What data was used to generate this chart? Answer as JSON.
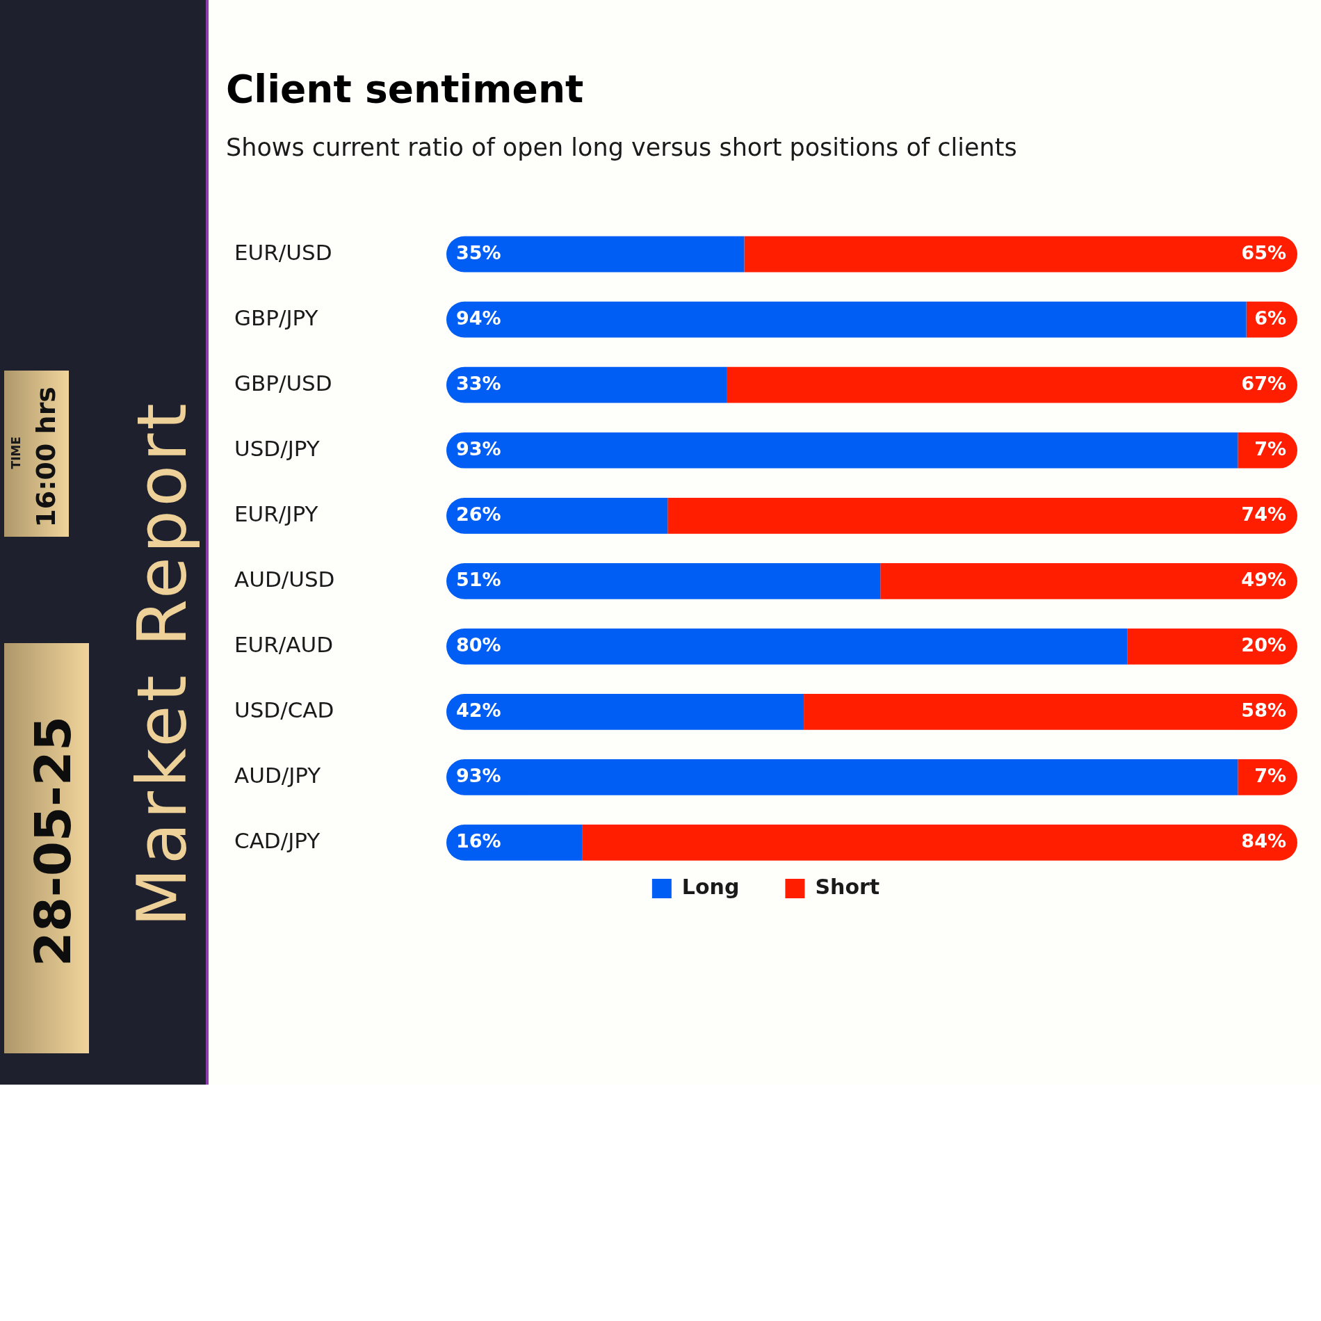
{
  "chart_data": {
    "type": "bar",
    "orientation": "horizontal",
    "stacked": true,
    "title": "Client sentiment",
    "subtitle": "Shows current ratio of open long versus short positions of clients",
    "categories": [
      "EUR/USD",
      "GBP/JPY",
      "GBP/USD",
      "USD/JPY",
      "EUR/JPY",
      "AUD/USD",
      "EUR/AUD",
      "USD/CAD",
      "AUD/JPY",
      "CAD/JPY"
    ],
    "series": [
      {
        "name": "Long",
        "color": "#005ef5",
        "values": [
          35,
          94,
          33,
          93,
          26,
          51,
          80,
          42,
          93,
          16
        ],
        "value_labels": [
          "35%",
          "94%",
          "33%",
          "93%",
          "26%",
          "51%",
          "80%",
          "42%",
          "93%",
          "16%"
        ]
      },
      {
        "name": "Short",
        "color": "#ff1e00",
        "values": [
          65,
          6,
          67,
          7,
          74,
          49,
          20,
          58,
          7,
          84
        ],
        "value_labels": [
          "65%",
          "6%",
          "67%",
          "7%",
          "74%",
          "49%",
          "20%",
          "58%",
          "7%",
          "84%"
        ]
      }
    ],
    "xlim": [
      0,
      100
    ],
    "tick_labels": "y",
    "legend": "bottom",
    "annotations": [
      "TIME",
      "16:00 hrs",
      "28-05-25",
      "Market Report"
    ]
  }
}
